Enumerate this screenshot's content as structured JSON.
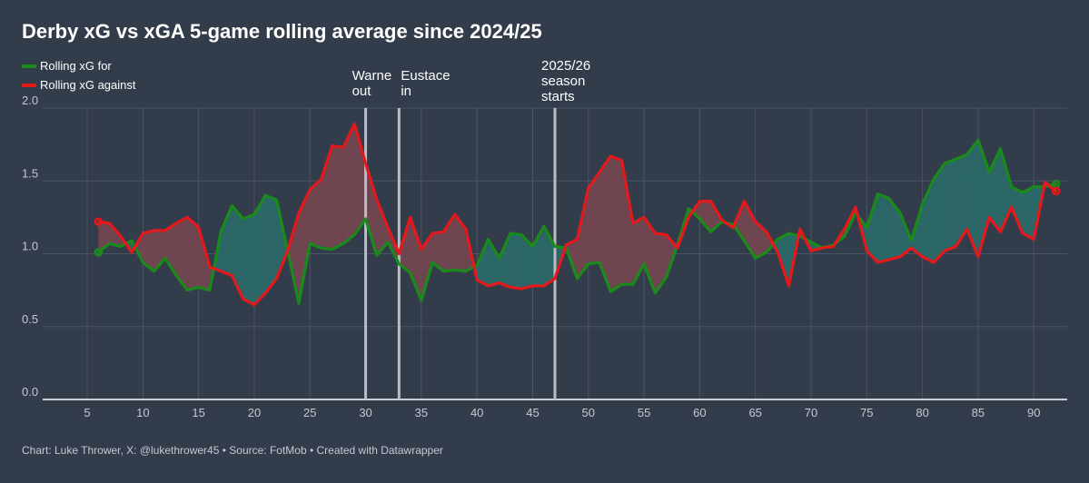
{
  "header": {
    "title": "Derby xG vs xGA 5-game rolling average since 2024/25"
  },
  "legend": [
    {
      "label": "Rolling xG for",
      "color": "#1a8a1a"
    },
    {
      "label": "Rolling xG against",
      "color": "#e3191c"
    }
  ],
  "footer": {
    "text": "Chart: Luke Thrower, X: @lukethrower45 • Source: FotMob • Created with Datawrapper"
  },
  "colors": {
    "background": "#333c4b",
    "xg_for": "#1a8a1a",
    "xg_against": "#e3191c",
    "fill_for": "#2a6f6c",
    "fill_against": "#7a4650",
    "annotation_line": "#b8bcc4",
    "grid": "#4b5463"
  },
  "chart_data": {
    "type": "line",
    "title": "Derby xG vs xGA 5-game rolling average since 2024/25",
    "xlabel": "",
    "ylabel": "",
    "xlim": [
      1,
      93
    ],
    "ylim": [
      0,
      2
    ],
    "x_ticks": [
      5,
      10,
      15,
      20,
      25,
      30,
      35,
      40,
      45,
      50,
      55,
      60,
      65,
      70,
      75,
      80,
      85,
      90
    ],
    "y_ticks": [
      {
        "value": 0,
        "label": "0.0"
      },
      {
        "value": 0.5,
        "label": "0.5"
      },
      {
        "value": 1,
        "label": "1.0"
      },
      {
        "value": 1.5,
        "label": "1.5"
      },
      {
        "value": 2,
        "label": "2.0"
      }
    ],
    "grid": true,
    "legend_position": "top-left",
    "x": [
      6,
      7,
      8,
      9,
      10,
      11,
      12,
      13,
      14,
      15,
      16,
      17,
      18,
      19,
      20,
      21,
      22,
      23,
      24,
      25,
      26,
      27,
      28,
      29,
      30,
      31,
      32,
      33,
      34,
      35,
      36,
      37,
      38,
      39,
      40,
      41,
      42,
      43,
      44,
      45,
      46,
      47,
      48,
      49,
      50,
      51,
      52,
      53,
      54,
      55,
      56,
      57,
      58,
      59,
      60,
      61,
      62,
      63,
      64,
      65,
      66,
      67,
      68,
      69,
      70,
      71,
      72,
      73,
      74,
      75,
      76,
      77,
      78,
      79,
      80,
      81,
      82,
      83,
      84,
      85,
      86,
      87,
      88,
      89,
      90,
      91,
      92
    ],
    "series": [
      {
        "name": "Rolling xG for",
        "color": "#1a8a1a",
        "values": [
          1.01,
          1.07,
          1.05,
          1.09,
          0.94,
          0.88,
          0.97,
          0.85,
          0.75,
          0.77,
          0.75,
          1.15,
          1.33,
          1.24,
          1.27,
          1.4,
          1.37,
          1.02,
          0.66,
          1.07,
          1.04,
          1.03,
          1.07,
          1.13,
          1.24,
          0.99,
          1.08,
          0.93,
          0.87,
          0.68,
          0.94,
          0.88,
          0.89,
          0.88,
          0.92,
          1.1,
          0.97,
          1.14,
          1.13,
          1.05,
          1.19,
          1.05,
          1.04,
          0.83,
          0.93,
          0.94,
          0.74,
          0.79,
          0.79,
          0.93,
          0.73,
          0.84,
          1.06,
          1.31,
          1.24,
          1.15,
          1.22,
          1.2,
          1.09,
          0.97,
          1.01,
          1.1,
          1.14,
          1.12,
          1.08,
          1.04,
          1.06,
          1.12,
          1.28,
          1.18,
          1.41,
          1.38,
          1.28,
          1.09,
          1.34,
          1.51,
          1.62,
          1.65,
          1.68,
          1.78,
          1.56,
          1.72,
          1.46,
          1.42,
          1.46,
          1.46,
          1.48
        ]
      },
      {
        "name": "Rolling xG against",
        "color": "#e3191c",
        "values": [
          1.22,
          1.21,
          1.12,
          1.01,
          1.14,
          1.16,
          1.16,
          1.21,
          1.25,
          1.18,
          0.91,
          0.88,
          0.85,
          0.69,
          0.65,
          0.73,
          0.83,
          1.02,
          1.28,
          1.44,
          1.51,
          1.74,
          1.73,
          1.89,
          1.62,
          1.37,
          1.18,
          1.0,
          1.25,
          1.03,
          1.14,
          1.15,
          1.27,
          1.17,
          0.82,
          0.78,
          0.8,
          0.77,
          0.76,
          0.78,
          0.78,
          0.83,
          1.06,
          1.1,
          1.45,
          1.56,
          1.67,
          1.64,
          1.21,
          1.25,
          1.14,
          1.13,
          1.04,
          1.25,
          1.36,
          1.36,
          1.23,
          1.18,
          1.36,
          1.22,
          1.15,
          1.01,
          0.78,
          1.17,
          1.02,
          1.04,
          1.05,
          1.17,
          1.32,
          1.02,
          0.94,
          0.96,
          0.98,
          1.04,
          0.98,
          0.94,
          1.02,
          1.05,
          1.17,
          0.98,
          1.25,
          1.15,
          1.32,
          1.14,
          1.1,
          1.49,
          1.43
        ]
      }
    ],
    "annotations": [
      {
        "x": 30,
        "lines": [
          "Warne",
          "out"
        ]
      },
      {
        "x": 33,
        "lines": [
          "Eustace",
          "in"
        ]
      },
      {
        "x": 47,
        "lines": [
          "2025/26",
          "season",
          "starts"
        ]
      }
    ]
  }
}
